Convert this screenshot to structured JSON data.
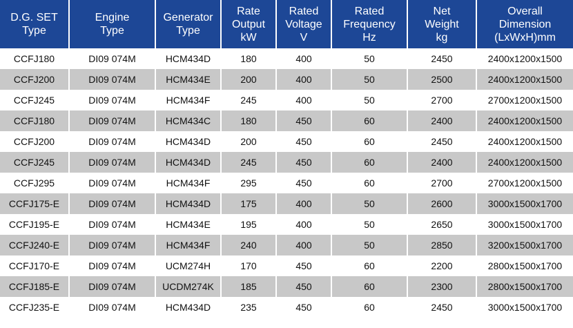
{
  "table": {
    "header": [
      [
        "D.G. SET",
        "Type"
      ],
      [
        "Engine",
        "Type"
      ],
      [
        "Generator",
        "Type"
      ],
      [
        "Rate",
        "Output",
        "kW"
      ],
      [
        "Rated",
        "Voltage",
        "V"
      ],
      [
        "Rated",
        "Frequency",
        "Hz"
      ],
      [
        "Net",
        "Weight",
        "kg"
      ],
      [
        "Overall",
        "Dimension",
        "(LxWxH)mm"
      ]
    ],
    "rows": [
      [
        "CCFJ180",
        "DI09 074M",
        "HCM434D",
        180,
        400,
        50,
        2450,
        "2400x1200x1500"
      ],
      [
        "CCFJ200",
        "DI09 074M",
        "HCM434E",
        200,
        400,
        50,
        2500,
        "2400x1200x1500"
      ],
      [
        "CCFJ245",
        "DI09 074M",
        "HCM434F",
        245,
        400,
        50,
        2700,
        "2700x1200x1500"
      ],
      [
        "CCFJ180",
        "DI09 074M",
        "HCM434C",
        180,
        450,
        60,
        2400,
        "2400x1200x1500"
      ],
      [
        "CCFJ200",
        "DI09 074M",
        "HCM434D",
        200,
        450,
        60,
        2450,
        "2400x1200x1500"
      ],
      [
        "CCFJ245",
        "DI09 074M",
        "HCM434D",
        245,
        450,
        60,
        2400,
        "2400x1200x1500"
      ],
      [
        "CCFJ295",
        "DI09 074M",
        "HCM434F",
        295,
        450,
        60,
        2700,
        "2700x1200x1500"
      ],
      [
        "CCFJ175-E",
        "DI09 074M",
        "HCM434D",
        175,
        400,
        50,
        2600,
        "3000x1500x1700"
      ],
      [
        "CCFJ195-E",
        "DI09 074M",
        "HCM434E",
        195,
        400,
        50,
        2650,
        "3000x1500x1700"
      ],
      [
        "CCFJ240-E",
        "DI09 074M",
        "HCM434F",
        240,
        400,
        50,
        2850,
        "3200x1500x1700"
      ],
      [
        "CCFJ170-E",
        "DI09 074M",
        "UCM274H",
        170,
        450,
        60,
        2200,
        "2800x1500x1700"
      ],
      [
        "CCFJ185-E",
        "DI09 074M",
        "UCDM274K",
        185,
        450,
        60,
        2300,
        "2800x1500x1700"
      ],
      [
        "CCFJ235-E",
        "DI09 074M",
        "HCM434D",
        235,
        450,
        60,
        2450,
        "3000x1500x1700"
      ]
    ]
  }
}
